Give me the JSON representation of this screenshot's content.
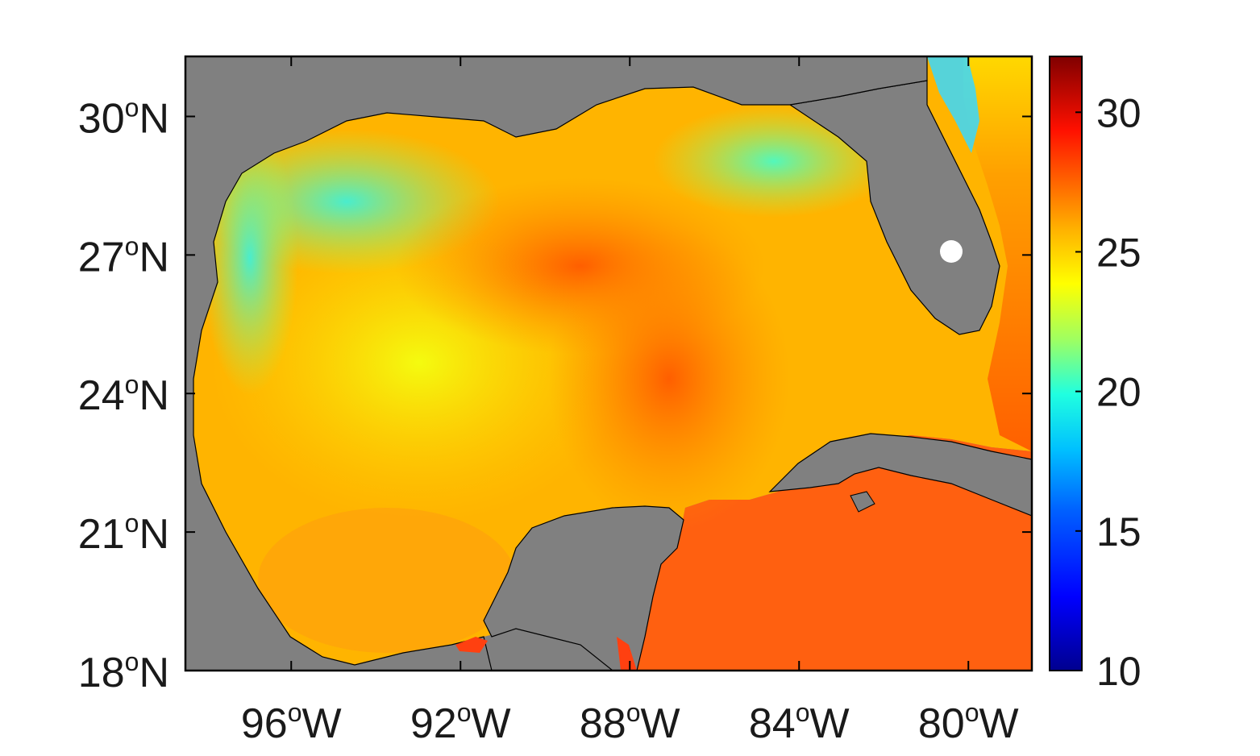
{
  "map": {
    "region": "Gulf of Mexico",
    "longitude_range": [
      -98.5,
      -78.5
    ],
    "latitude_range": [
      18,
      31.3
    ],
    "land_color": "#808080",
    "frame_color": "#000000",
    "lat_ticks": [
      {
        "value": 30,
        "num": "30",
        "deg": "o",
        "hemi": "N"
      },
      {
        "value": 27,
        "num": "27",
        "deg": "o",
        "hemi": "N"
      },
      {
        "value": 24,
        "num": "24",
        "deg": "o",
        "hemi": "N"
      },
      {
        "value": 21,
        "num": "21",
        "deg": "o",
        "hemi": "N"
      },
      {
        "value": 18,
        "num": "18",
        "deg": "o",
        "hemi": "N"
      }
    ],
    "lon_ticks": [
      {
        "value": -96,
        "num": "96",
        "deg": "o",
        "hemi": "W"
      },
      {
        "value": -92,
        "num": "92",
        "deg": "o",
        "hemi": "W"
      },
      {
        "value": -88,
        "num": "88",
        "deg": "o",
        "hemi": "W"
      },
      {
        "value": -84,
        "num": "84",
        "deg": "o",
        "hemi": "W"
      },
      {
        "value": -80,
        "num": "80",
        "deg": "o",
        "hemi": "W"
      }
    ]
  },
  "colorbar": {
    "range": [
      10,
      32
    ],
    "ticks": [
      {
        "value": 30,
        "label": "30"
      },
      {
        "value": 25,
        "label": "25"
      },
      {
        "value": 20,
        "label": "20"
      },
      {
        "value": 15,
        "label": "15"
      },
      {
        "value": 10,
        "label": "10"
      }
    ],
    "colormap": [
      "#00008f",
      "#0000ff",
      "#00a0ff",
      "#00ffff",
      "#80ff80",
      "#ffff00",
      "#ffa000",
      "#ff4000",
      "#ff0000",
      "#800000"
    ]
  }
}
